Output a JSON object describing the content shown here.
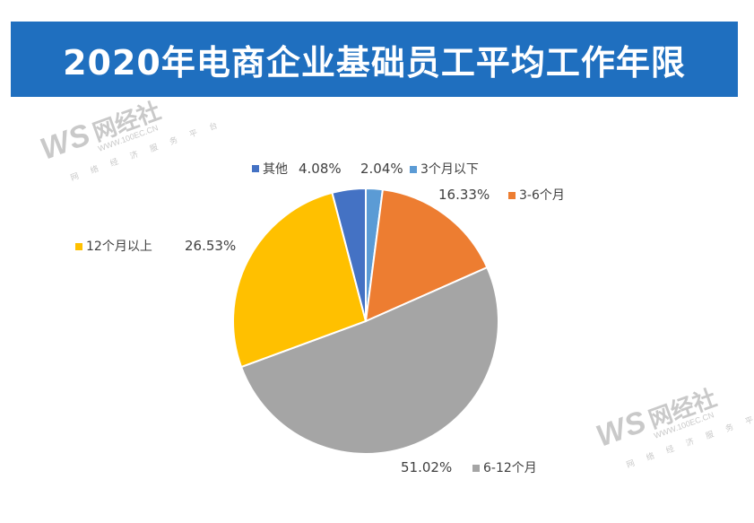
{
  "header": {
    "title": "2020年电商企业基础员工平均工作年限"
  },
  "watermark": {
    "brand": "WS",
    "name": "网经社",
    "url": "WWW.100EC.CN",
    "tagline": "网 络 经 济 服 务 平 台"
  },
  "chart_data": {
    "type": "pie",
    "title": "2020年电商企业基础员工平均工作年限",
    "slices": [
      {
        "label": "3个月以下",
        "value": 2.04,
        "value_label": "2.04%",
        "color": "#5b9bd5"
      },
      {
        "label": "3-6个月",
        "value": 16.33,
        "value_label": "16.33%",
        "color": "#ed7d31"
      },
      {
        "label": "6-12个月",
        "value": 51.02,
        "value_label": "51.02%",
        "color": "#a5a5a5"
      },
      {
        "label": "12个月以上",
        "value": 26.53,
        "value_label": "26.53%",
        "color": "#ffc000"
      },
      {
        "label": "其他",
        "value": 4.08,
        "value_label": "4.08%",
        "color": "#4472c4"
      }
    ]
  }
}
